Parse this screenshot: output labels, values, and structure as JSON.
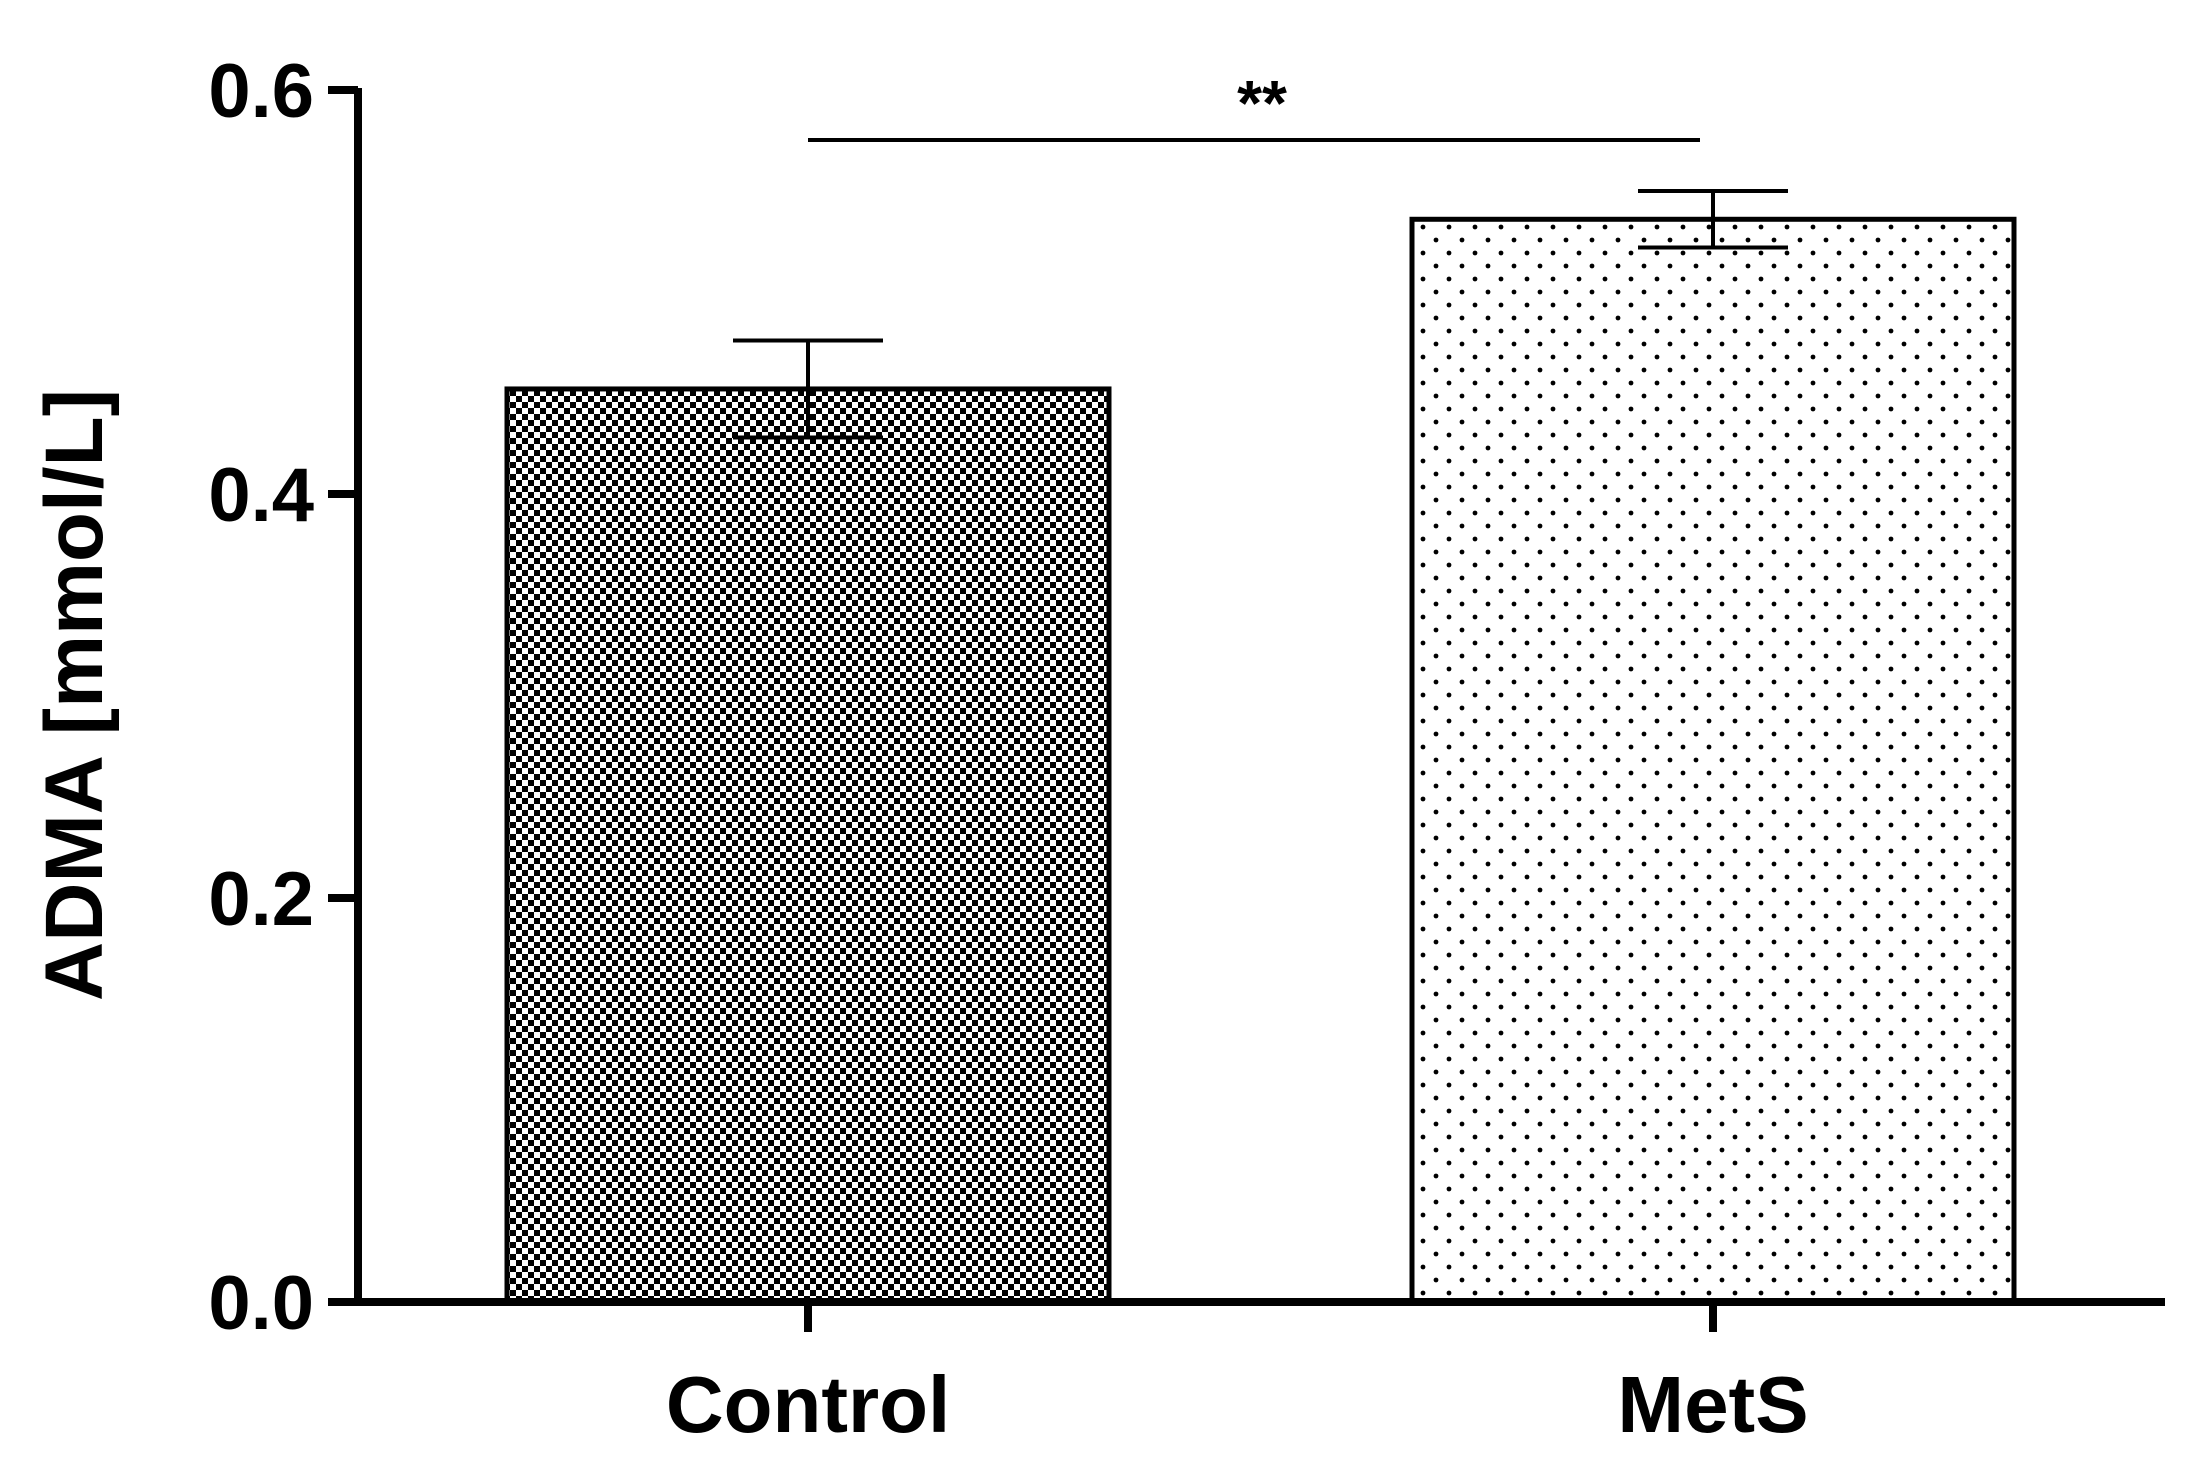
{
  "chart_data": {
    "type": "bar",
    "categories": [
      "Control",
      "MetS"
    ],
    "values": [
      0.452,
      0.536
    ],
    "errors": [
      0.024,
      0.014
    ],
    "title": "",
    "xlabel": "",
    "ylabel": "ADMA [mmol/L]",
    "ylim": [
      0,
      0.6
    ],
    "yticks": [
      0.0,
      0.2,
      0.4,
      0.6
    ],
    "ytick_labels": [
      "0.0",
      "0.2",
      "0.4",
      "0.6"
    ],
    "grid": false,
    "legend": "none",
    "bar_patterns": [
      "dense-checker",
      "sparse-dots"
    ],
    "significance": {
      "between": [
        "Control",
        "MetS"
      ],
      "label": "**"
    },
    "colors": {
      "axis": "#000000",
      "bar_fill": "#ffffff",
      "pattern": "#000000"
    }
  }
}
